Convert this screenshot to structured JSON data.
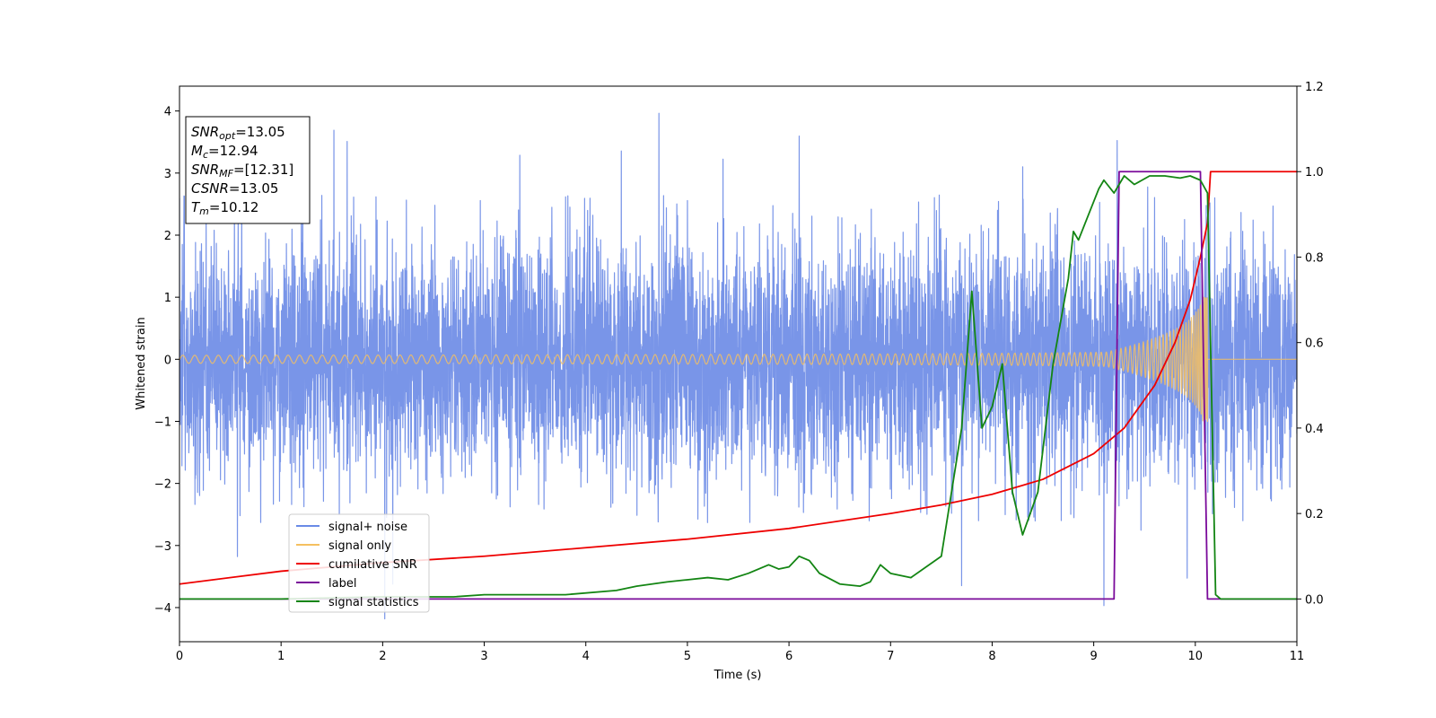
{
  "chart_data": {
    "type": "line",
    "xlabel": "Time (s)",
    "ylabel_left": "Whitened strain",
    "xlim": [
      0,
      11
    ],
    "ylim_left": [
      -4.55,
      4.4
    ],
    "ylim_right": [
      -0.1,
      1.2
    ],
    "x_ticks": [
      0,
      1,
      2,
      3,
      4,
      5,
      6,
      7,
      8,
      9,
      10,
      11
    ],
    "y_ticks_left": [
      -4,
      -3,
      -2,
      -1,
      0,
      1,
      2,
      3,
      4
    ],
    "y_ticks_right": [
      0.0,
      0.2,
      0.4,
      0.6,
      0.8,
      1.0,
      1.2
    ],
    "grid": false,
    "legend_position": "lower-left",
    "annotation": {
      "lines": [
        {
          "var": "SNR",
          "sub": "opt",
          "value": "=13.05"
        },
        {
          "var": "M",
          "sub": "c",
          "value": "=12.94"
        },
        {
          "var": "SNR",
          "sub": "MF",
          "value": "=[12.31]"
        },
        {
          "var": "CSNR",
          "sub": "",
          "value": "=13.05"
        },
        {
          "var": "T",
          "sub": "m",
          "value": "=10.12"
        }
      ]
    },
    "series": [
      {
        "name": "signal+ noise",
        "color": "#6a8ae6",
        "axis": "left",
        "kind": "noise",
        "noise_sigma": 0.95,
        "n_points": 6000,
        "spikes": [
          [
            0.0,
            2.6
          ],
          [
            0.57,
            -3.15
          ],
          [
            1.2,
            2.9
          ],
          [
            1.52,
            3.65
          ],
          [
            1.65,
            3.5
          ],
          [
            2.02,
            -4.15
          ],
          [
            2.1,
            -3.6
          ],
          [
            3.35,
            3.3
          ],
          [
            4.35,
            3.4
          ],
          [
            4.72,
            4.0
          ],
          [
            5.35,
            3.25
          ],
          [
            6.1,
            3.55
          ],
          [
            7.7,
            -3.7
          ],
          [
            8.3,
            3.1
          ],
          [
            9.1,
            -3.9
          ],
          [
            9.23,
            3.5
          ],
          [
            9.92,
            -3.2
          ]
        ]
      },
      {
        "name": "signal only",
        "color": "#f5c060",
        "axis": "left",
        "kind": "chirp",
        "start": 0.0,
        "end": 10.12,
        "t_merge": 10.12,
        "amp_end": 1.0
      },
      {
        "name": "cumilative SNR",
        "color": "#ee0000",
        "axis": "right",
        "x": [
          0.0,
          1.0,
          2.0,
          3.0,
          4.0,
          5.0,
          6.0,
          7.0,
          7.5,
          8.0,
          8.5,
          9.0,
          9.3,
          9.6,
          9.8,
          9.95,
          10.05,
          10.12,
          10.15,
          11.0
        ],
        "y": [
          0.035,
          0.065,
          0.085,
          0.1,
          0.12,
          0.14,
          0.165,
          0.2,
          0.22,
          0.245,
          0.28,
          0.34,
          0.4,
          0.5,
          0.6,
          0.7,
          0.8,
          0.88,
          1.0,
          1.0
        ]
      },
      {
        "name": "label",
        "color": "#7a0a9a",
        "axis": "right",
        "x": [
          0.0,
          9.2,
          9.25,
          10.05,
          10.12,
          11.0
        ],
        "y": [
          0.0,
          0.0,
          1.0,
          1.0,
          0.0,
          0.0
        ]
      },
      {
        "name": "signal statistics",
        "color": "#138513",
        "axis": "right",
        "x": [
          0.0,
          1.0,
          2.0,
          2.7,
          3.0,
          3.3,
          3.8,
          4.3,
          4.5,
          4.8,
          5.0,
          5.2,
          5.4,
          5.6,
          5.8,
          5.9,
          6.0,
          6.1,
          6.2,
          6.3,
          6.5,
          6.7,
          6.8,
          6.9,
          7.0,
          7.2,
          7.5,
          7.7,
          7.8,
          7.9,
          8.0,
          8.1,
          8.2,
          8.3,
          8.45,
          8.6,
          8.75,
          8.8,
          8.85,
          8.95,
          9.05,
          9.1,
          9.2,
          9.3,
          9.4,
          9.55,
          9.7,
          9.85,
          9.95,
          10.05,
          10.12,
          10.2,
          10.25,
          11.0
        ],
        "y": [
          0.0,
          0.0,
          0.005,
          0.005,
          0.01,
          0.01,
          0.01,
          0.02,
          0.03,
          0.04,
          0.045,
          0.05,
          0.045,
          0.06,
          0.08,
          0.07,
          0.075,
          0.1,
          0.09,
          0.06,
          0.035,
          0.03,
          0.04,
          0.08,
          0.06,
          0.05,
          0.1,
          0.4,
          0.72,
          0.4,
          0.45,
          0.55,
          0.25,
          0.15,
          0.25,
          0.55,
          0.75,
          0.86,
          0.84,
          0.9,
          0.96,
          0.98,
          0.95,
          0.99,
          0.97,
          0.99,
          0.99,
          0.985,
          0.99,
          0.98,
          0.95,
          0.01,
          0.0,
          0.0
        ]
      }
    ]
  }
}
